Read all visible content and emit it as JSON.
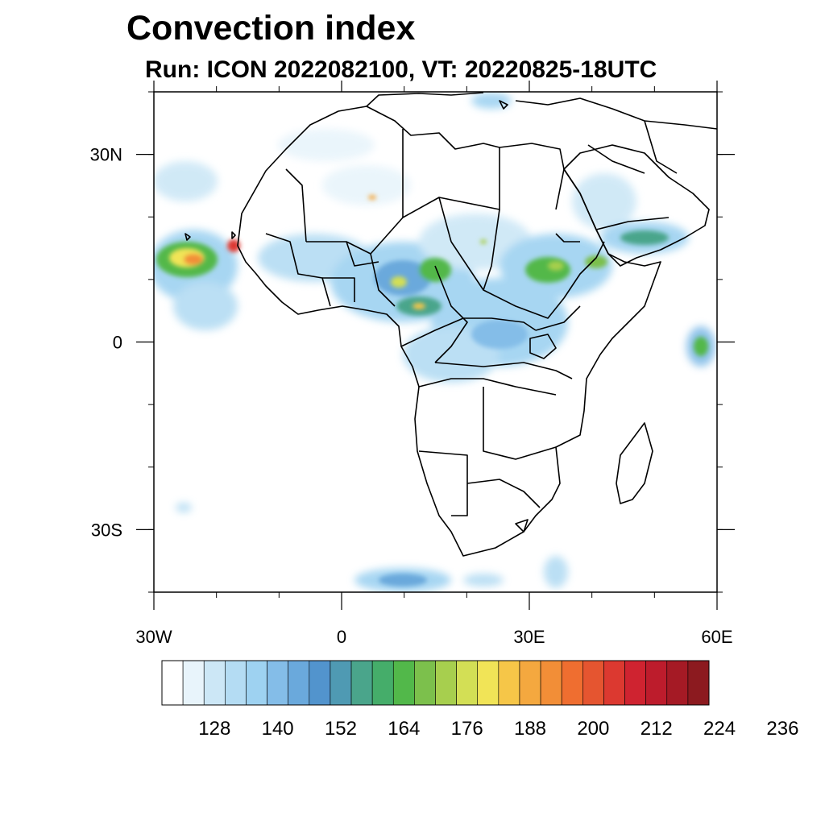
{
  "title": "Convection index",
  "subtitle": "Run: ICON 2022082100,  VT: 20220825-18UTC",
  "map": {
    "projection": "equirectangular",
    "lon_range": [
      -30,
      60
    ],
    "lat_range": [
      -40,
      40
    ],
    "x_ticks": [
      {
        "lon": -30,
        "label": "30W"
      },
      {
        "lon": 0,
        "label": "0"
      },
      {
        "lon": 30,
        "label": "30E"
      },
      {
        "lon": 60,
        "label": "60E"
      }
    ],
    "y_ticks": [
      {
        "lat": 30,
        "label": "30N"
      },
      {
        "lat": 0,
        "label": "0"
      },
      {
        "lat": -30,
        "label": "30S"
      }
    ],
    "minor_lon_step": 10,
    "minor_lat_step": 10
  },
  "colorbar": {
    "labels": [
      "128",
      "140",
      "152",
      "164",
      "176",
      "188",
      "200",
      "212",
      "224",
      "236"
    ],
    "colors": [
      "#ffffff",
      "#e8f4fb",
      "#cce7f6",
      "#b4dcf3",
      "#9ed2f1",
      "#84bde8",
      "#6aa9dc",
      "#5294cd",
      "#4f9ab3",
      "#4aa58b",
      "#45ad6a",
      "#52b84a",
      "#7cc04c",
      "#a7cf4e",
      "#d3df55",
      "#f1e457",
      "#f6c648",
      "#f4a83f",
      "#f28e37",
      "#ef6e30",
      "#e55530",
      "#dc3930",
      "#cf2330",
      "#bd1c2c",
      "#a51a25",
      "#8c1a1f"
    ]
  }
}
